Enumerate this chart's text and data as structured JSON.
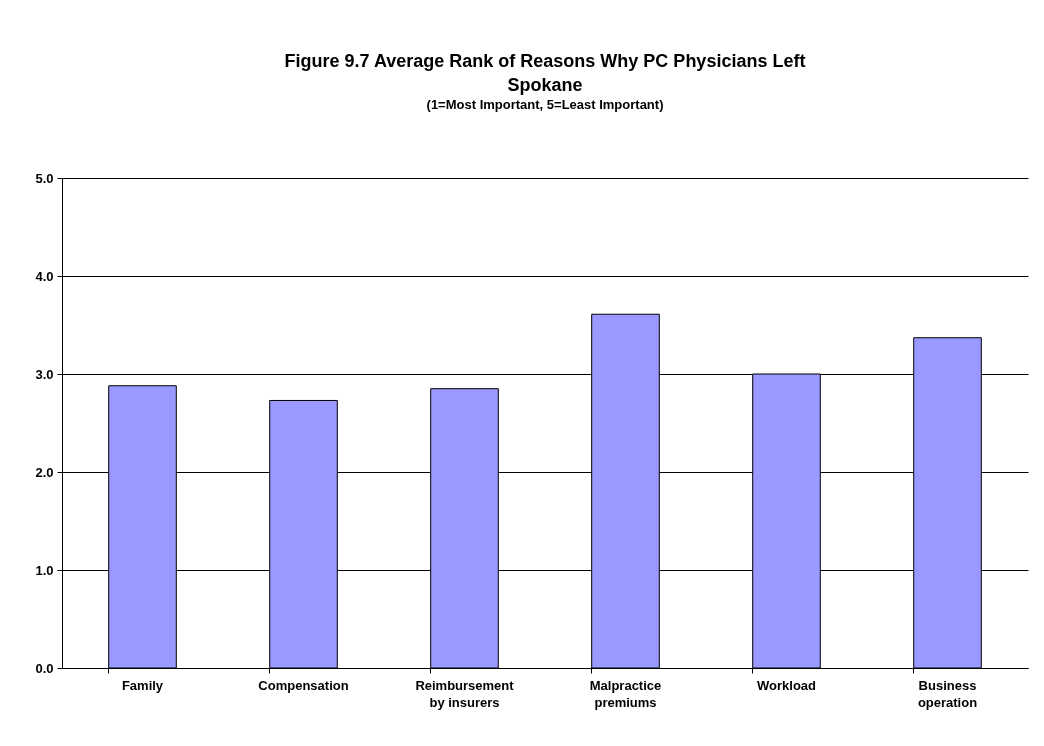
{
  "chart_data": {
    "type": "bar",
    "title": "Figure 9.7 Average Rank of Reasons Why PC Physicians Left Spokane",
    "subtitle": "(1=Most Important, 5=Least Important)",
    "categories": [
      "Family",
      "Compensation",
      "Reimbursement by insurers",
      "Malpractice premiums",
      "Workload",
      "Business operation"
    ],
    "values": [
      2.88,
      2.73,
      2.85,
      3.61,
      3.0,
      3.37
    ],
    "color": "#9999ff",
    "ylim": [
      0,
      5
    ],
    "yticks": [
      {
        "value": 0,
        "label": "0.0"
      },
      {
        "value": 1,
        "label": "1.0"
      },
      {
        "value": 2,
        "label": "2.0"
      },
      {
        "value": 3,
        "label": "3.0"
      },
      {
        "value": 4,
        "label": "4.0"
      },
      {
        "value": 5,
        "label": "5.0"
      }
    ],
    "grid": "y"
  }
}
